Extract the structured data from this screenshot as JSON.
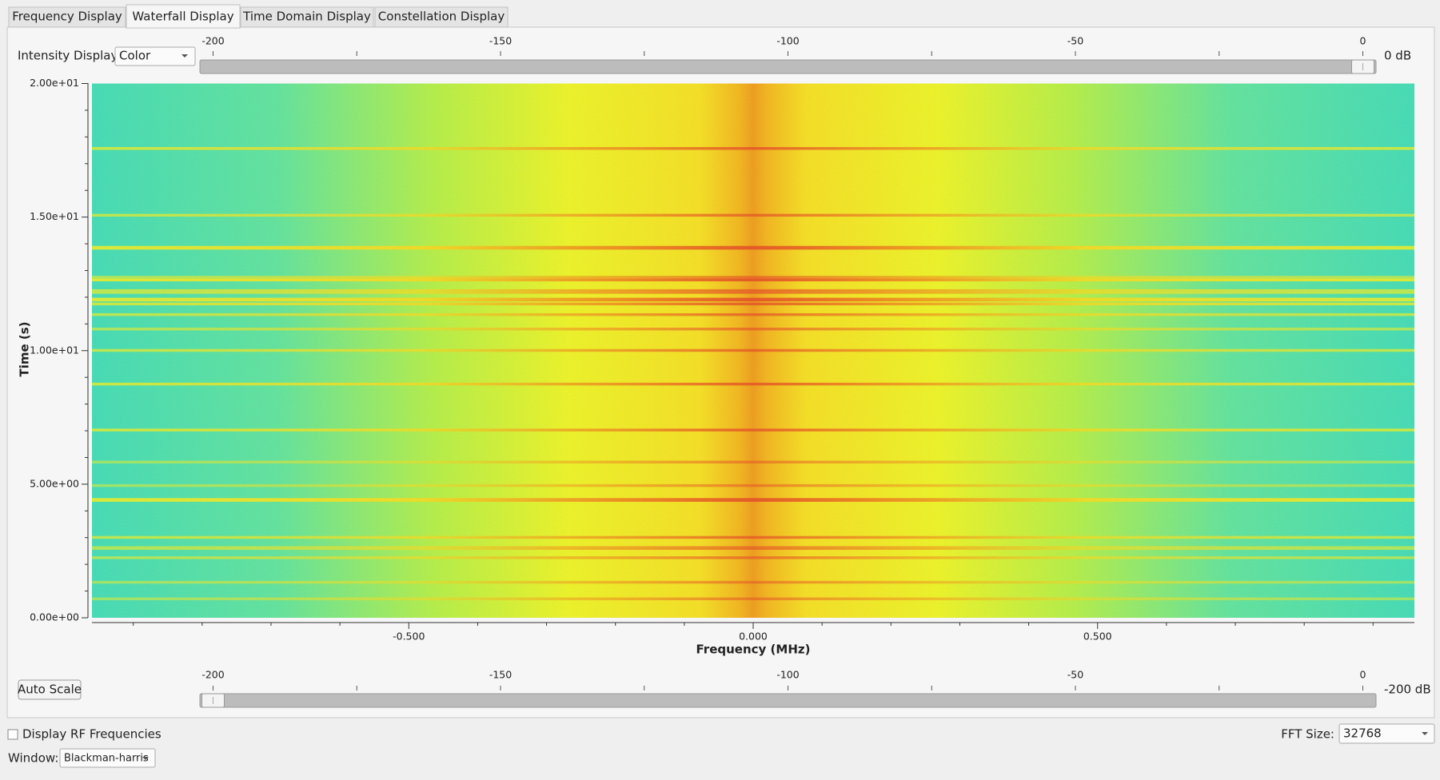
{
  "tabs": [
    "Frequency Display",
    "Waterfall Display",
    "Time Domain Display",
    "Constellation Display"
  ],
  "intensity": {
    "label": "Intensity Display:",
    "value": "Color"
  },
  "top_slider": {
    "lim": [
      -200,
      0
    ],
    "ticks": [
      -200,
      -150,
      -100,
      -50,
      0
    ],
    "minor_ticks": [
      -175,
      -125,
      -75,
      -25
    ],
    "value": 0,
    "value_label": "0 dB"
  },
  "plot": {
    "ylabel": "Time (s)",
    "xlabel": "Frequency (MHz)",
    "ylim": [
      0,
      20
    ],
    "yticks": [
      {
        "value": 0,
        "label": "0.00e+00"
      },
      {
        "value": 5,
        "label": "5.00e+00"
      },
      {
        "value": 10,
        "label": "1.00e+01"
      },
      {
        "value": 15,
        "label": "1.50e+01"
      },
      {
        "value": 20,
        "label": "2.00e+01"
      }
    ],
    "yminor_ticks": [
      1,
      2,
      3,
      4,
      6,
      7,
      8,
      9,
      11,
      12,
      13,
      14,
      16,
      17,
      18,
      19
    ],
    "xlim": [
      -0.96,
      0.96
    ],
    "xticks": [
      {
        "value": -0.5,
        "label": "-0.500"
      },
      {
        "value": 0,
        "label": "0.000"
      },
      {
        "value": 0.5,
        "label": "0.500"
      }
    ],
    "xminor_ticks": [
      -0.9,
      -0.8,
      -0.7,
      -0.6,
      -0.4,
      -0.3,
      -0.2,
      -0.1,
      0.1,
      0.2,
      0.3,
      0.4,
      0.6,
      0.7,
      0.8,
      0.9
    ]
  },
  "auto_scale": "Auto Scale",
  "bottom_slider": {
    "lim": [
      -200,
      0
    ],
    "ticks": [
      -200,
      -150,
      -100,
      -50,
      0
    ],
    "minor_ticks": [
      -175,
      -125,
      -75,
      -25
    ],
    "value": -200,
    "value_label": "-200 dB"
  },
  "rf_checkbox": "Display RF Frequencies",
  "fft": {
    "label": "FFT Size:",
    "value": "32768"
  },
  "window": {
    "label": "Window:",
    "value": "Blackman-harris"
  }
}
